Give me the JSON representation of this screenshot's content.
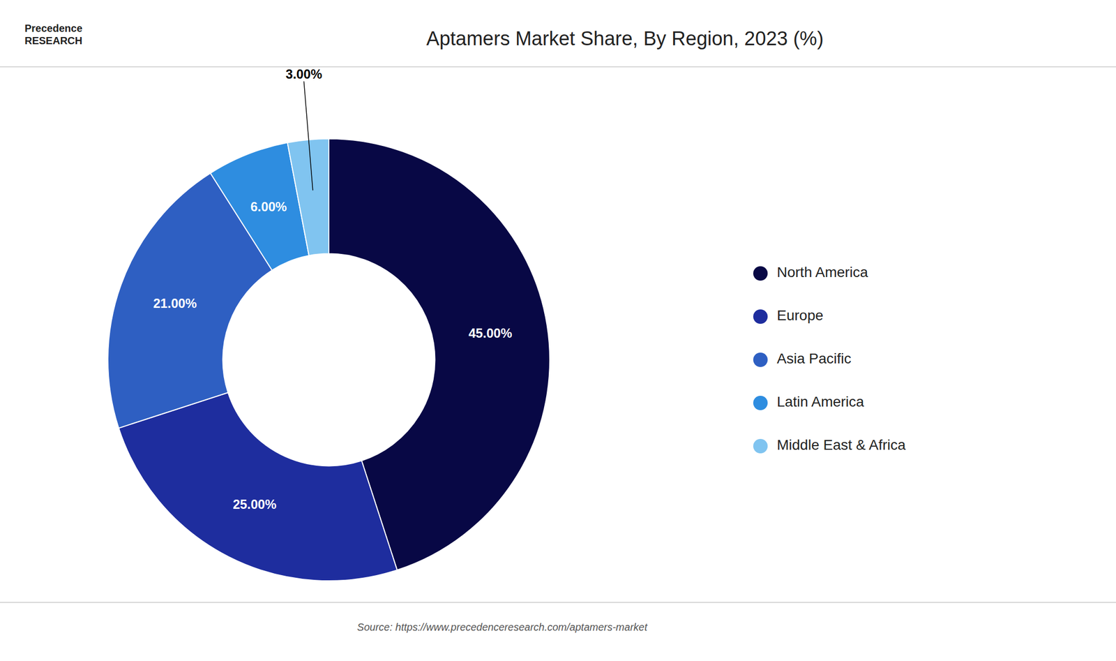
{
  "chart_data": {
    "type": "pie",
    "title": "Aptamers Market Share, By Region, 2023 (%)",
    "categories": [
      "North America",
      "Europe",
      "Asia Pacific",
      "Latin America",
      "Middle East & Africa"
    ],
    "values": [
      45.0,
      25.0,
      21.0,
      6.0,
      3.0
    ],
    "value_labels": [
      "45.00%",
      "25.00%",
      "21.00%",
      "6.00%",
      "3.00%"
    ],
    "colors": [
      "#080845",
      "#1e2d9e",
      "#2e5fc2",
      "#2e8de0",
      "#80c4f0"
    ],
    "data_labels": true,
    "legend": "right",
    "annotations": [
      "Precedence\nRESEARCH",
      "Source: https://www.precedenceresearch.com/aptamers-market"
    ]
  }
}
